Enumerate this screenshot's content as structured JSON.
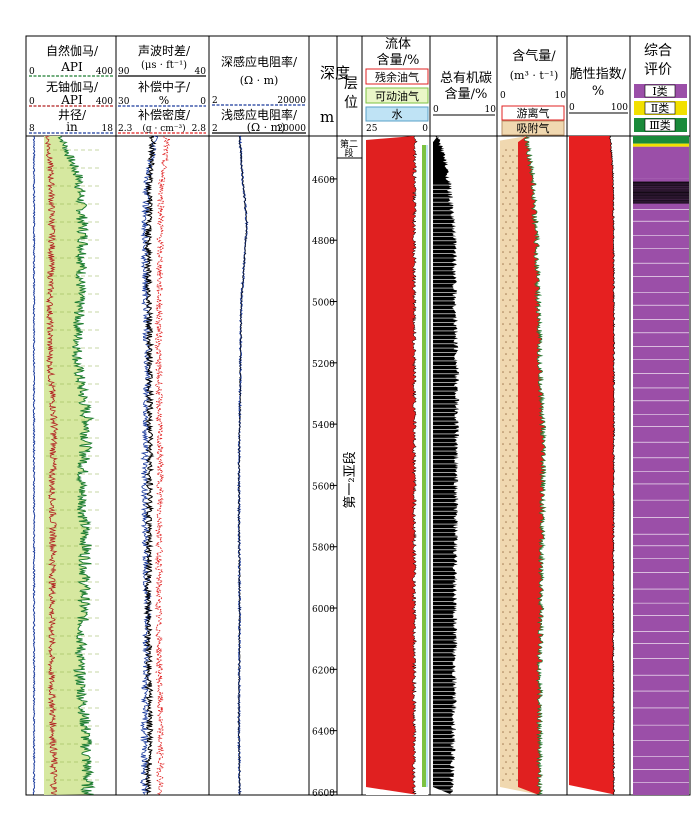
{
  "header": {
    "gr": {
      "title": "自然伽马/",
      "unit": "API",
      "min": "0",
      "max": "400"
    },
    "kth": {
      "title": "无铀伽马/",
      "unit": "API",
      "min": "0",
      "max": "400"
    },
    "cal": {
      "title": "井径/",
      "unit": "in",
      "min": "8",
      "max": "18"
    },
    "ac": {
      "title": "声波时差/",
      "unit": "(μs · ft⁻¹)",
      "min": "90",
      "max": "40"
    },
    "cnl": {
      "title": "补偿中子/",
      "unit": "%",
      "min": "30",
      "max": "0"
    },
    "den": {
      "title": "补偿密度/",
      "unit": "(g · cm⁻³)",
      "min": "2.3",
      "max": "2.8"
    },
    "rd": {
      "title": "深感应电阻率/",
      "unit": "(Ω · m)",
      "min": "2",
      "max": "20000"
    },
    "rs": {
      "title": "浅感应电阻率/",
      "unit": "(Ω · m)",
      "min": "2",
      "max": "20000"
    },
    "depth": {
      "title1": "深度",
      "title2": "m"
    },
    "strat": {
      "title1": "层",
      "title2": "位"
    },
    "fluid": {
      "title1": "流体",
      "title2": "含量/%",
      "residual": "残余油气",
      "movable": "可动油气",
      "water": "水",
      "min": "25",
      "max": "0"
    },
    "toc": {
      "title1": "总有机碳",
      "title2": "含量/%",
      "min": "0",
      "max": "10"
    },
    "gas": {
      "title1": "含气量/",
      "title2": "(m³ · t⁻¹)",
      "min": "0",
      "max": "10",
      "free": "游离气",
      "adsorbed": "吸附气"
    },
    "brittle": {
      "title1": "脆性指数/",
      "title2": "%",
      "min": "0",
      "max": "100"
    },
    "eval": {
      "title1": "综合",
      "title2": "评价",
      "class1": "Ⅰ类",
      "class2": "Ⅱ类",
      "class3": "Ⅲ类"
    }
  },
  "strat_labels": {
    "upper": "第二段",
    "main": "第一₂亚段"
  },
  "colors": {
    "gr_fill": "#d6e8a0",
    "gr_line": "#1e7d32",
    "kth_line": "#b22222",
    "cal_line": "#1a3a9c",
    "ac_line": "#000000",
    "cnl_line": "#1a3a9c",
    "den_line": "#e02020",
    "rd_line": "#1a3a9c",
    "rs_line": "#000000",
    "residual": "#e02020",
    "movable": "#7cc242",
    "water": "#bfe3f5",
    "toc": "#000000",
    "free_gas": "#e02020",
    "adsorbed_gas": "#f0d8b0",
    "brittle": "#e62020",
    "class1": "#9b4fa8",
    "class2": "#f2e000",
    "class3": "#1a8a3a"
  },
  "chart_data": {
    "type": "line",
    "title": "",
    "ylabel": "深度/m",
    "depth_range": [
      4460,
      6610
    ],
    "depth_ticks": [
      4600,
      4800,
      5000,
      5200,
      5400,
      5600,
      5800,
      6000,
      6200,
      6400,
      6600
    ],
    "tracks": [
      {
        "name": "自然伽马",
        "unit": "API",
        "range": [
          0,
          400
        ],
        "depth": [
          4460,
          4600,
          4700,
          4800,
          5000,
          5200,
          5400,
          5600,
          5800,
          6000,
          6200,
          6400,
          6600
        ],
        "values": [
          150,
          240,
          250,
          260,
          240,
          230,
          280,
          250,
          270,
          260,
          240,
          270,
          280
        ]
      },
      {
        "name": "无铀伽马",
        "unit": "API",
        "range": [
          0,
          400
        ],
        "depth": [
          4460,
          4600,
          4800,
          5000,
          5200,
          5400,
          5600,
          5800,
          6000,
          6200,
          6400,
          6600
        ],
        "values": [
          90,
          105,
          110,
          100,
          100,
          120,
          110,
          115,
          110,
          105,
          115,
          120
        ]
      },
      {
        "name": "井径",
        "unit": "in",
        "range": [
          8,
          18
        ],
        "depth": [
          4460,
          4800,
          5200,
          5600,
          6000,
          6400,
          6600
        ],
        "values": [
          8.6,
          8.6,
          8.6,
          8.6,
          8.6,
          8.6,
          8.6
        ]
      },
      {
        "name": "声波时差",
        "unit": "μs · ft⁻¹",
        "range": [
          90,
          40
        ],
        "depth": [
          4460,
          4600,
          4800,
          5200,
          5600,
          6000,
          6400,
          6600
        ],
        "values": [
          70,
          72,
          73,
          72,
          72,
          73,
          72,
          73
        ]
      },
      {
        "name": "补偿中子",
        "unit": "%",
        "range": [
          30,
          0
        ],
        "depth": [
          4460,
          4600,
          4800,
          5200,
          5600,
          6000,
          6400,
          6600
        ],
        "values": [
          17,
          20,
          21,
          20,
          21,
          20,
          21,
          21
        ]
      },
      {
        "name": "补偿密度",
        "unit": "g · cm⁻³",
        "range": [
          2.3,
          2.8
        ],
        "depth": [
          4460,
          4600,
          4800,
          5200,
          5600,
          6000,
          6400,
          6600
        ],
        "values": [
          2.58,
          2.55,
          2.54,
          2.53,
          2.54,
          2.53,
          2.54,
          2.54
        ]
      },
      {
        "name": "深感应电阻率",
        "unit": "Ω · m",
        "range": [
          2,
          20000
        ],
        "depth": [
          4460,
          4600,
          4740,
          5000,
          5400,
          5600,
          6000,
          6400,
          6600
        ],
        "values": [
          30,
          40,
          60,
          35,
          30,
          28,
          30,
          28,
          30
        ]
      },
      {
        "name": "流体含量",
        "unit": "%",
        "range": [
          25,
          0
        ],
        "depth": [
          4460,
          4600,
          5000,
          5400,
          6000,
          6600
        ],
        "values": [
          5,
          5.5,
          5.5,
          5.5,
          5.5,
          5.5
        ]
      },
      {
        "name": "总有机碳含量",
        "unit": "%",
        "range": [
          0,
          10
        ],
        "depth": [
          4460,
          4500,
          4600,
          4700,
          4800,
          5000,
          5200,
          5400,
          5600,
          5800,
          6000,
          6200,
          6400,
          6600
        ],
        "values": [
          0.5,
          1.5,
          2.5,
          3.0,
          3.5,
          3.5,
          3.8,
          3.8,
          3.7,
          3.6,
          3.5,
          3.5,
          3.3,
          3.0
        ]
      },
      {
        "name": "含气量",
        "unit": "m³ · t⁻¹",
        "range": [
          0,
          10
        ],
        "depth": [
          4460,
          4600,
          4800,
          5000,
          5200,
          5400,
          5600,
          5800,
          6000,
          6200,
          6400,
          6600
        ],
        "values": [
          4.0,
          5.0,
          5.5,
          5.8,
          6.0,
          6.5,
          6.5,
          6.3,
          6.2,
          6.0,
          6.0,
          6.0
        ]
      },
      {
        "name": "脆性指数",
        "unit": "%",
        "range": [
          0,
          100
        ],
        "depth": [
          4460,
          4600,
          5000,
          5400,
          6000,
          6600
        ],
        "values": [
          70,
          75,
          76,
          76,
          75,
          76
        ]
      }
    ],
    "evaluation": [
      {
        "top": 4460,
        "bottom": 4485,
        "class": "Ⅲ类"
      },
      {
        "top": 4485,
        "bottom": 4495,
        "class": "Ⅱ类"
      },
      {
        "top": 4495,
        "bottom": 4600,
        "class": "Ⅰ类"
      },
      {
        "top": 4600,
        "bottom": 6610,
        "class": "Ⅰ类"
      }
    ]
  }
}
